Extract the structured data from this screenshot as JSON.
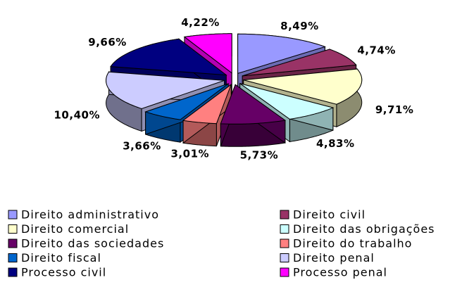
{
  "chart_data": {
    "type": "pie3d",
    "categories": [
      "Direito administrativo",
      "Direito civil",
      "Direito comercial",
      "Direito das obrigações",
      "Direito das sociedades",
      "Direito do trabalho",
      "Direito fiscal",
      "Direito penal",
      "Processo civil",
      "Processo penal"
    ],
    "values": [
      8.49,
      4.74,
      9.71,
      4.83,
      5.73,
      3.01,
      3.66,
      10.4,
      9.66,
      4.22
    ],
    "value_labels": [
      "8,49%",
      "4,74%",
      "9,71%",
      "4,83%",
      "5,73%",
      "3,01%",
      "3,66%",
      "10,40%",
      "9,66%",
      "4,22%"
    ],
    "colors": [
      "#9999ff",
      "#993366",
      "#ffffcc",
      "#ccffff",
      "#660066",
      "#ff8080",
      "#0066cc",
      "#ccccff",
      "#000080",
      "#ff00ff"
    ],
    "legend": "bottom"
  }
}
